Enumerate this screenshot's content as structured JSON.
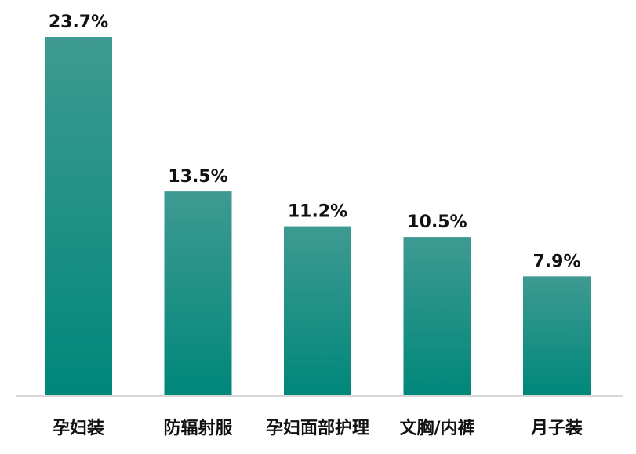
{
  "chart_data": {
    "type": "bar",
    "categories": [
      "孕妇装",
      "防辐射服",
      "孕妇面部护理",
      "文胸/内裤",
      "月子装"
    ],
    "values": [
      23.7,
      13.5,
      11.2,
      10.5,
      7.9
    ],
    "value_labels": [
      "23.7%",
      "13.5%",
      "11.2%",
      "10.5%",
      "7.9%"
    ],
    "unit": "%",
    "ylim": [
      0,
      23.7
    ],
    "grid": false,
    "legend": "none",
    "bar_color_top": "#3e9a92",
    "bar_color_bottom": "#00877a",
    "baseline_color": "#d6d6d6"
  }
}
